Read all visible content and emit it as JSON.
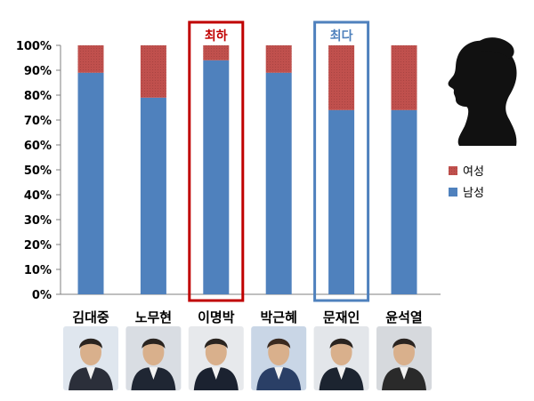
{
  "chart_data": {
    "type": "bar",
    "stacked": true,
    "percent": true,
    "categories": [
      "김대중",
      "노무현",
      "이명박",
      "박근혜",
      "문재인",
      "윤석열"
    ],
    "series": [
      {
        "name": "남성",
        "values": [
          89,
          79,
          94,
          89,
          74,
          74
        ],
        "color": "#4f81bd"
      },
      {
        "name": "여성",
        "values": [
          11,
          21,
          6,
          11,
          26,
          26
        ],
        "color": "#c0504d"
      }
    ],
    "yticks": [
      "0%",
      "10%",
      "20%",
      "30%",
      "40%",
      "50%",
      "60%",
      "70%",
      "80%",
      "90%",
      "100%"
    ],
    "ylim": [
      0,
      100
    ],
    "legend_position": "right",
    "highlights": [
      {
        "category": "이명박",
        "label": "최하",
        "color": "#c00000"
      },
      {
        "category": "문재인",
        "label": "최다",
        "color": "#4f81bd"
      }
    ]
  },
  "decorations": {
    "silhouette": "woman-profile-silhouette-icon",
    "portraits": [
      "portrait-photo",
      "portrait-photo",
      "portrait-photo",
      "portrait-photo",
      "portrait-photo",
      "portrait-photo"
    ]
  }
}
